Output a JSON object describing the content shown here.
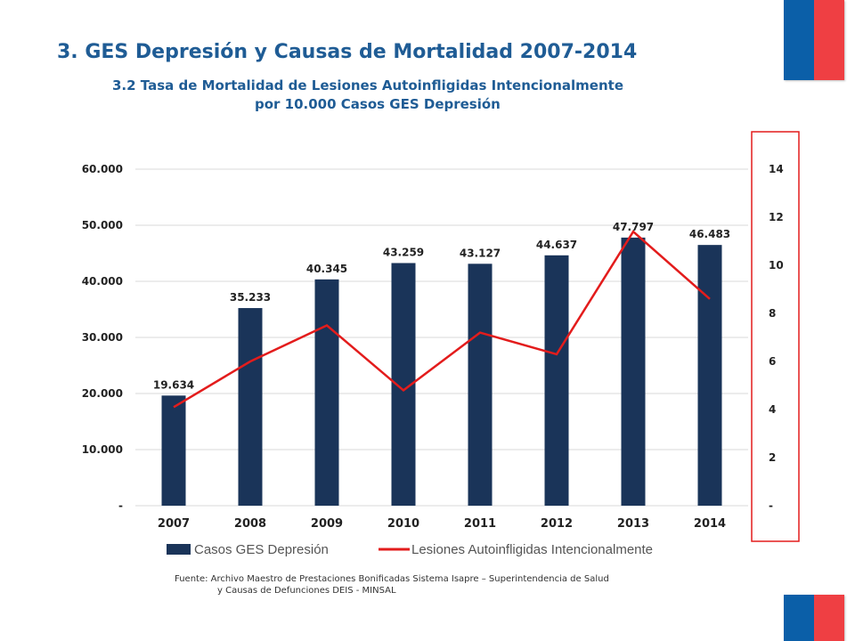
{
  "slide": {
    "title": "3. GES Depresión y Causas de Mortalidad 2007-2014",
    "subtitle_line1": "3.2 Tasa de Mortalidad de Lesiones Autoinfligidas Intencionalmente",
    "subtitle_line2": "por 10.000 Casos GES Depresión",
    "source_line1": "Fuente: Archivo Maestro de Prestaciones Bonificadas Sistema Isapre – Superintendencia de Salud",
    "source_line2": "y Causas de Defunciones DEIS - MINSAL"
  },
  "colors": {
    "title": "#1f5c95",
    "bar": "#1a3459",
    "line": "#e31c1c",
    "highlight_box": "#e31c1c",
    "grid": "#d9d9d9",
    "flag_blue": "#0b5fa8",
    "flag_red": "#ef3f43"
  },
  "chart_data": {
    "type": "bar+line",
    "categories": [
      "2007",
      "2008",
      "2009",
      "2010",
      "2011",
      "2012",
      "2013",
      "2014"
    ],
    "series": [
      {
        "name": "Casos GES Depresión",
        "type": "bar",
        "axis": "left",
        "values": [
          19634,
          35233,
          40345,
          43259,
          43127,
          44637,
          47797,
          46483
        ],
        "labels": [
          "19.634",
          "35.233",
          "40.345",
          "43.259",
          "43.127",
          "44.637",
          "47.797",
          "46.483"
        ]
      },
      {
        "name": "Lesiones Autoinfligidas Intencionalmente",
        "type": "line",
        "axis": "right",
        "values": [
          4.1,
          6.0,
          7.5,
          4.8,
          7.2,
          6.3,
          11.4,
          8.6
        ]
      }
    ],
    "y_left": {
      "ylim": [
        0,
        60000
      ],
      "ticks": [
        0,
        10000,
        20000,
        30000,
        40000,
        50000,
        60000
      ],
      "tick_labels": [
        "-",
        "10.000",
        "20.000",
        "30.000",
        "40.000",
        "50.000",
        "60.000"
      ]
    },
    "y_right": {
      "ylim": [
        0,
        14
      ],
      "ticks": [
        0,
        2,
        4,
        6,
        8,
        10,
        12,
        14
      ],
      "tick_labels": [
        "-",
        "2",
        "4",
        "6",
        "8",
        "10",
        "12",
        "14"
      ]
    },
    "grid": true,
    "legend_position": "bottom",
    "right_axis_highlighted": true
  }
}
